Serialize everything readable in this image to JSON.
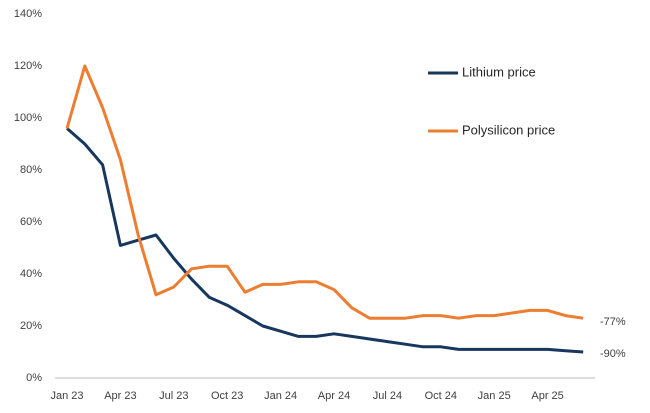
{
  "chart_data": {
    "type": "line",
    "categories": [
      "Jan 23",
      null,
      null,
      "Apr 23",
      null,
      null,
      "Jul 23",
      null,
      null,
      "Oct 23",
      null,
      null,
      "Jan 24",
      null,
      null,
      "Apr 24",
      null,
      null,
      "Jul 24",
      null,
      null,
      "Oct 24",
      null,
      null,
      "Jan 25",
      null,
      null,
      "Apr 25",
      null,
      null
    ],
    "series": [
      {
        "name": "Lithium price",
        "color": "#17375e",
        "values": [
          96,
          90,
          82,
          51,
          53,
          55,
          46,
          38,
          31,
          28,
          24,
          20,
          18,
          16,
          16,
          17,
          16,
          15,
          14,
          13,
          12,
          12,
          11,
          11,
          11,
          11,
          11,
          11,
          10.5,
          10
        ]
      },
      {
        "name": "Polysilicon price",
        "color": "#ed7d31",
        "values": [
          96,
          120,
          104,
          84,
          55,
          32,
          35,
          42,
          43,
          43,
          33,
          36,
          36,
          37,
          37,
          34,
          27,
          23,
          23,
          23,
          24,
          24,
          23,
          24,
          24,
          25,
          26,
          26,
          24,
          23
        ]
      }
    ],
    "ylim": [
      0,
      140
    ],
    "yticks": [
      {
        "value": 0,
        "label": "0%"
      },
      {
        "value": 20,
        "label": "20%"
      },
      {
        "value": 40,
        "label": "40%"
      },
      {
        "value": 60,
        "label": "60%"
      },
      {
        "value": 80,
        "label": "80%"
      },
      {
        "value": 100,
        "label": "100%"
      },
      {
        "value": 120,
        "label": "120%"
      },
      {
        "value": 140,
        "label": "140%"
      }
    ],
    "annotations": [
      "-77%",
      "-90%"
    ],
    "grid": false
  }
}
